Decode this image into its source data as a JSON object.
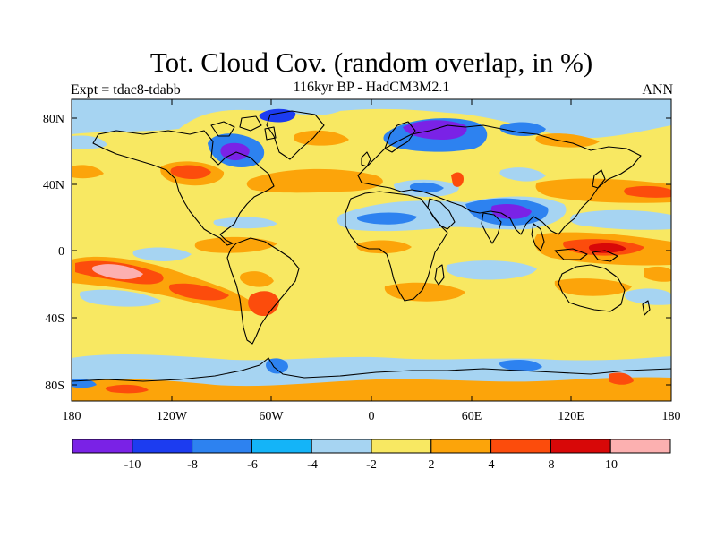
{
  "title": "Tot. Cloud Cov. (random overlap, in %)",
  "subtitle": "116kyr BP - HadCM3M2.1",
  "left_label": "Expt = tdac8-tdabb",
  "right_label": "ANN",
  "y_ticks": [
    "80N",
    "40N",
    "0",
    "40S",
    "80S"
  ],
  "x_ticks": [
    "180",
    "120W",
    "60W",
    "0",
    "60E",
    "120E",
    "180"
  ],
  "colorbar": {
    "colors": [
      "#7a22e6",
      "#1c3cf0",
      "#2d82f0",
      "#14b4f8",
      "#a6d4f2",
      "#f8e862",
      "#fca40a",
      "#fc4c0c",
      "#d80808",
      "#fcb0b0"
    ],
    "labels": [
      "-10",
      "-8",
      "-6",
      "-4",
      "-2",
      "2",
      "4",
      "8",
      "10"
    ]
  }
}
